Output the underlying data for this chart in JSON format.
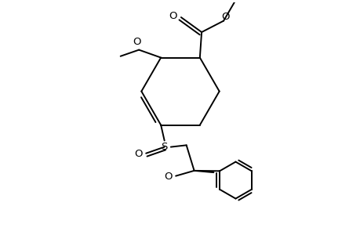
{
  "bg_color": "#ffffff",
  "line_color": "#000000",
  "line_width": 1.4,
  "font_size": 9.5,
  "fig_width": 4.6,
  "fig_height": 3.0,
  "dpi": 100,
  "xlim": [
    0,
    10
  ],
  "ylim": [
    0,
    6.52
  ]
}
